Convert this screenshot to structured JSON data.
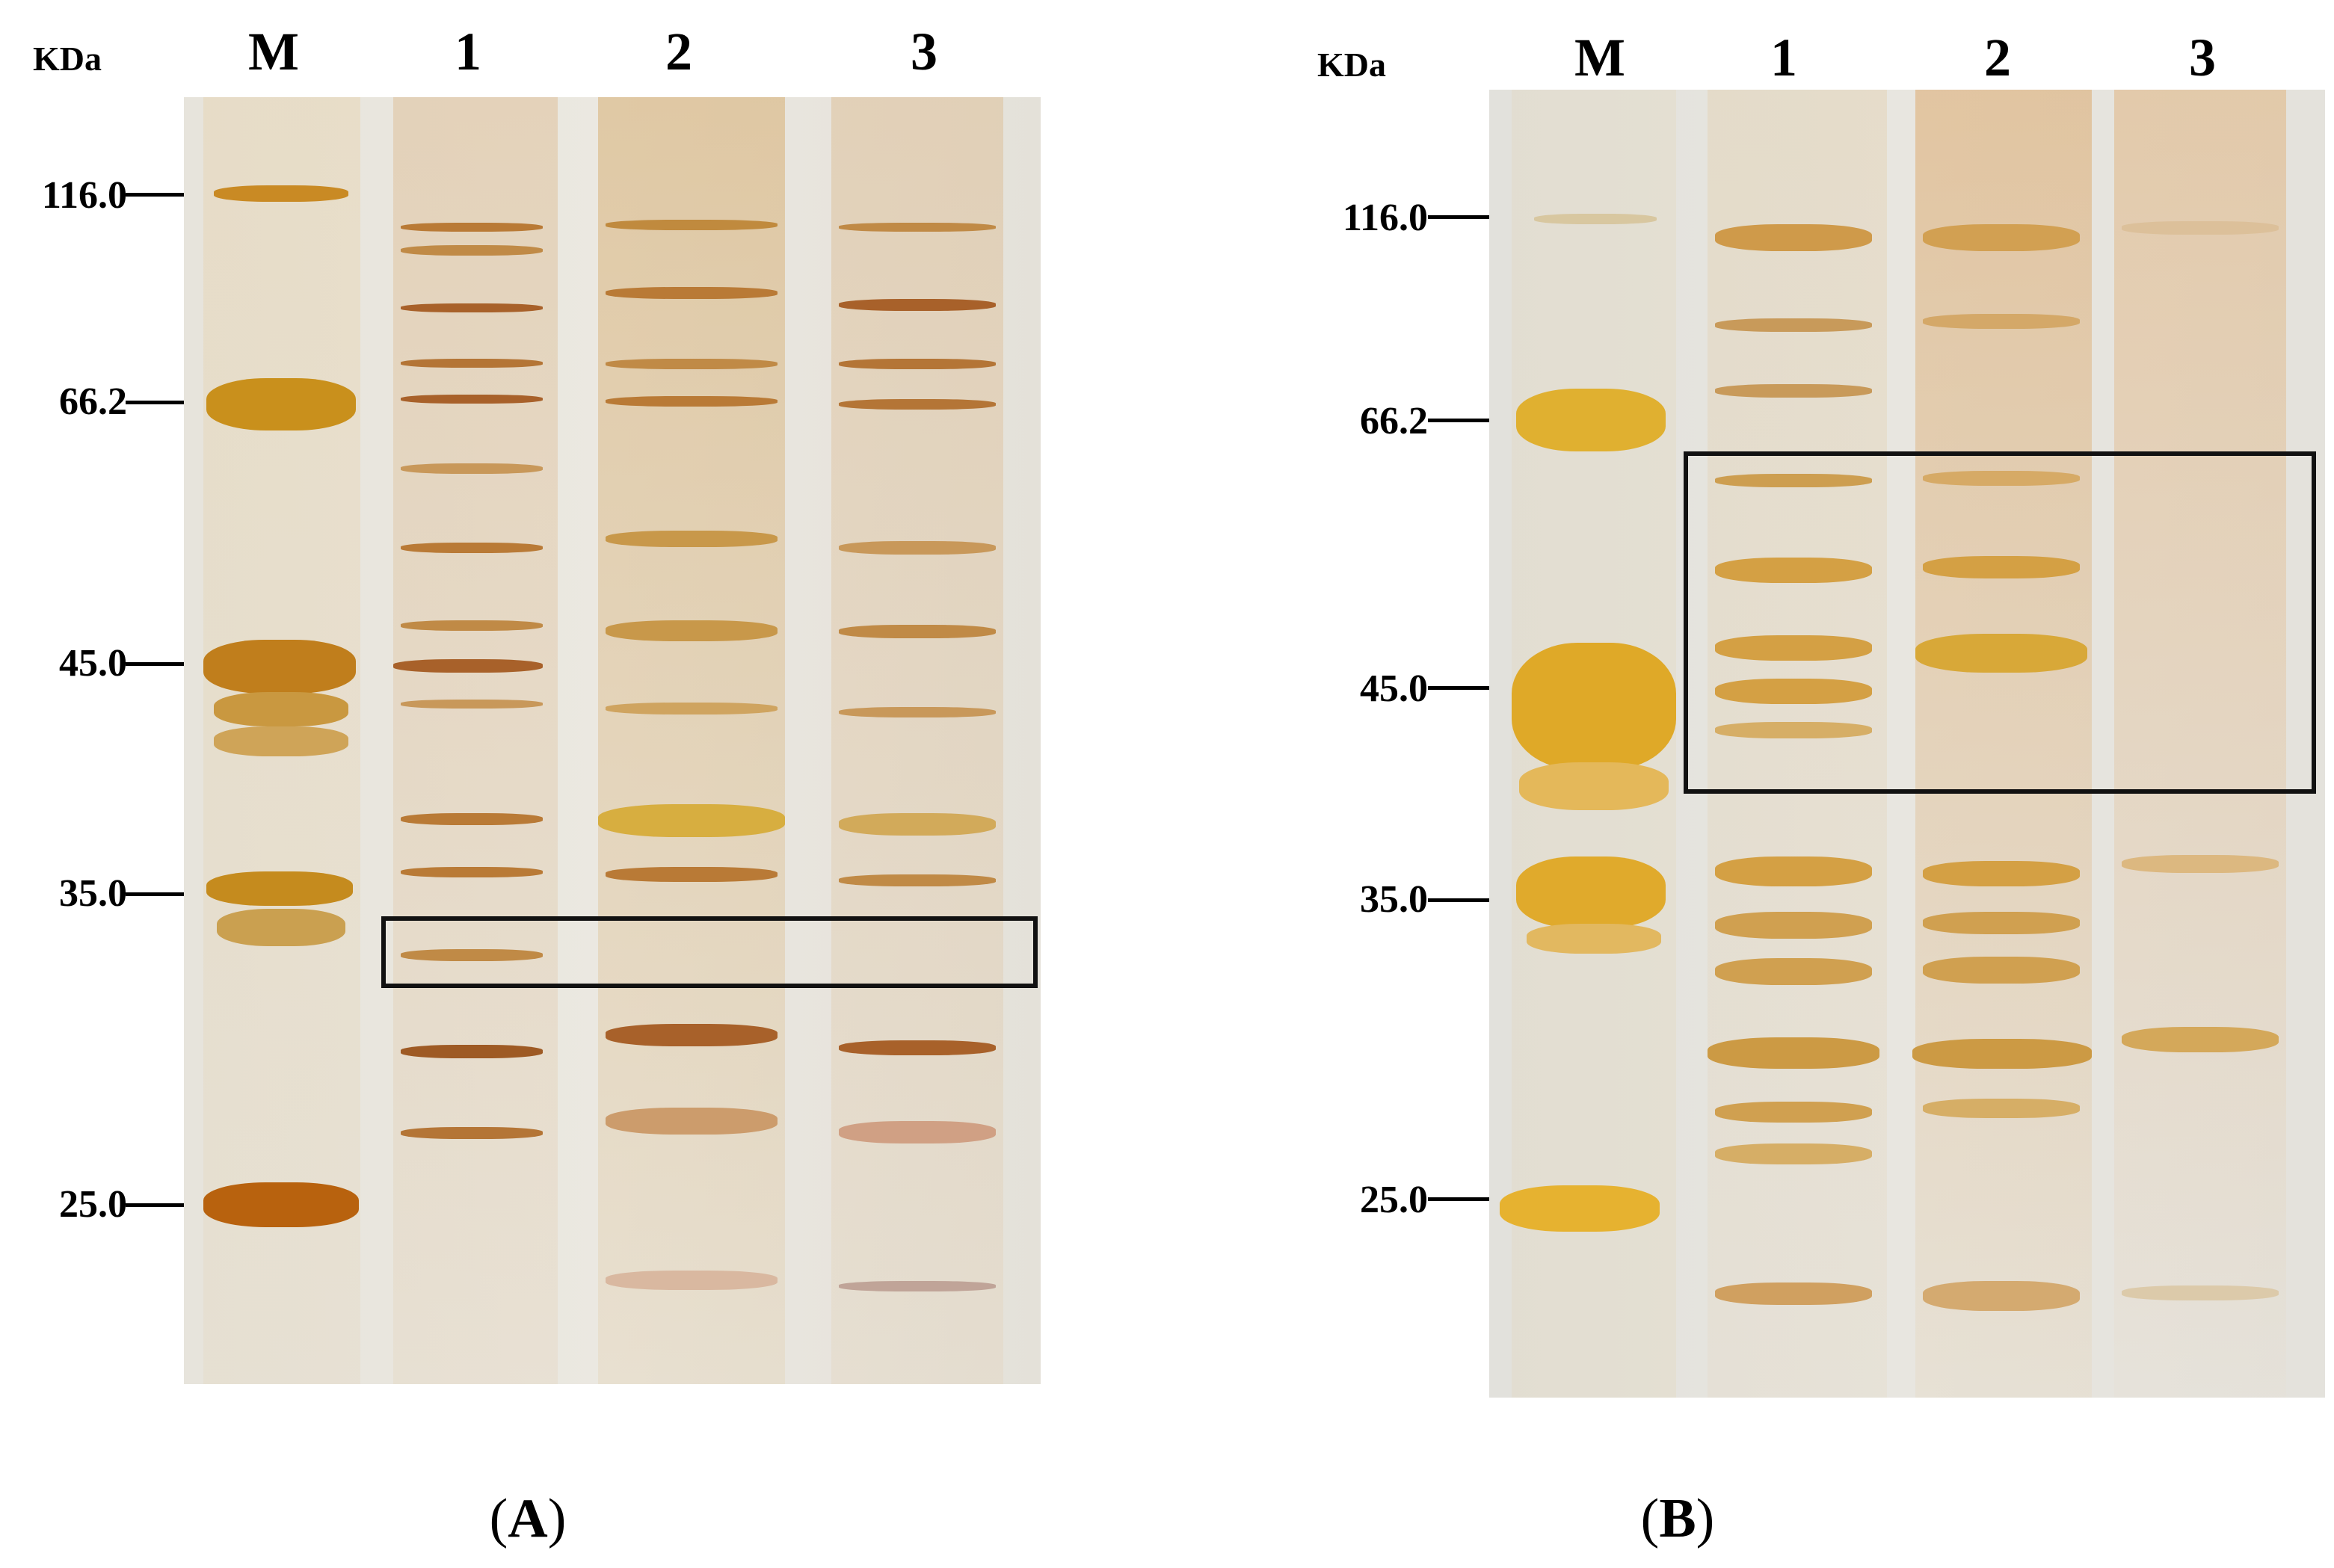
{
  "panels": [
    {
      "id": "A",
      "caption": "A",
      "unit_label": "KDa",
      "lanes": [
        "M",
        "1",
        "2",
        "3"
      ],
      "markers": [
        "116.0",
        "66.2",
        "45.0",
        "35.0",
        "25.0"
      ]
    },
    {
      "id": "B",
      "caption": "B",
      "unit_label": "KDa",
      "lanes": [
        "M",
        "1",
        "2",
        "3"
      ],
      "markers": [
        "116.0",
        "66.2",
        "45.0",
        "35.0",
        "25.0"
      ]
    }
  ],
  "colors": {
    "gel_background": "#ece9e2",
    "band_dark": "#b8742a",
    "band_marker": "#d9a22a",
    "highlight_box": "#111111"
  }
}
